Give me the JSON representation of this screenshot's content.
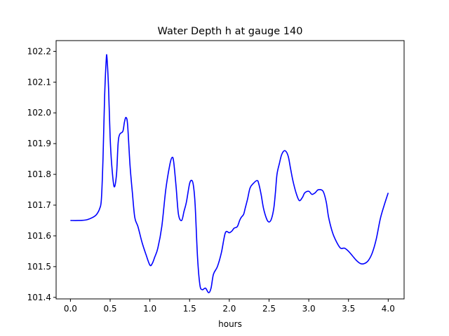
{
  "chart_data": {
    "type": "line",
    "title": "Water Depth h at gauge 140",
    "xlabel": "hours",
    "ylabel": "",
    "xlim": [
      -0.18,
      4.2
    ],
    "ylim": [
      101.395,
      102.235
    ],
    "xticks": [
      0.0,
      0.5,
      1.0,
      1.5,
      2.0,
      2.5,
      3.0,
      3.5,
      4.0
    ],
    "xtick_labels": [
      "0.0",
      "0.5",
      "1.0",
      "1.5",
      "2.0",
      "2.5",
      "3.0",
      "3.5",
      "4.0"
    ],
    "yticks": [
      101.4,
      101.5,
      101.6,
      101.7,
      101.8,
      101.9,
      102.0,
      102.1,
      102.2
    ],
    "ytick_labels": [
      "101.4",
      "101.5",
      "101.6",
      "101.7",
      "101.8",
      "101.9",
      "102.0",
      "102.1",
      "102.2"
    ],
    "grid": false,
    "series": [
      {
        "color": "#0000ff",
        "x": [
          0.0,
          0.1,
          0.2,
          0.28,
          0.33,
          0.37,
          0.39,
          0.41,
          0.43,
          0.45,
          0.46,
          0.48,
          0.5,
          0.52,
          0.55,
          0.58,
          0.6,
          0.62,
          0.66,
          0.68,
          0.7,
          0.72,
          0.75,
          0.78,
          0.81,
          0.85,
          0.9,
          0.95,
          1.0,
          1.03,
          1.06,
          1.1,
          1.15,
          1.2,
          1.25,
          1.28,
          1.3,
          1.33,
          1.36,
          1.4,
          1.43,
          1.46,
          1.5,
          1.53,
          1.55,
          1.57,
          1.6,
          1.63,
          1.66,
          1.7,
          1.74,
          1.77,
          1.8,
          1.85,
          1.9,
          1.95,
          2.0,
          2.03,
          2.06,
          2.1,
          2.13,
          2.15,
          2.18,
          2.2,
          2.23,
          2.26,
          2.3,
          2.35,
          2.37,
          2.4,
          2.43,
          2.47,
          2.5,
          2.53,
          2.56,
          2.58,
          2.6,
          2.63,
          2.66,
          2.7,
          2.74,
          2.77,
          2.8,
          2.84,
          2.88,
          2.92,
          2.95,
          3.0,
          3.04,
          3.08,
          3.12,
          3.18,
          3.22,
          3.25,
          3.3,
          3.35,
          3.4,
          3.45,
          3.5,
          3.55,
          3.6,
          3.65,
          3.7,
          3.75,
          3.8,
          3.85,
          3.9,
          3.95,
          4.0
        ],
        "y": [
          101.65,
          101.65,
          101.652,
          101.66,
          101.67,
          101.69,
          101.72,
          101.85,
          102.05,
          102.17,
          102.18,
          102.08,
          101.92,
          101.83,
          101.76,
          101.8,
          101.9,
          101.93,
          101.94,
          101.97,
          101.985,
          101.96,
          101.83,
          101.74,
          101.66,
          101.63,
          101.58,
          101.54,
          101.505,
          101.51,
          101.53,
          101.56,
          101.63,
          101.75,
          101.83,
          101.855,
          101.84,
          101.76,
          101.67,
          101.65,
          101.68,
          101.71,
          101.77,
          101.78,
          101.76,
          101.7,
          101.53,
          101.44,
          101.425,
          101.43,
          101.415,
          101.43,
          101.475,
          101.5,
          101.545,
          101.61,
          101.61,
          101.615,
          101.625,
          101.63,
          101.65,
          101.66,
          101.67,
          101.69,
          101.72,
          101.755,
          101.77,
          101.78,
          101.77,
          101.735,
          101.69,
          101.655,
          101.645,
          101.655,
          101.69,
          101.74,
          101.8,
          101.835,
          101.865,
          101.877,
          101.86,
          101.82,
          101.78,
          101.74,
          101.715,
          101.725,
          101.74,
          101.745,
          101.735,
          101.74,
          101.75,
          101.745,
          101.71,
          101.66,
          101.61,
          101.58,
          101.56,
          101.56,
          101.55,
          101.535,
          101.52,
          101.51,
          101.51,
          101.52,
          101.545,
          101.59,
          101.655,
          101.7,
          101.74
        ]
      }
    ]
  }
}
